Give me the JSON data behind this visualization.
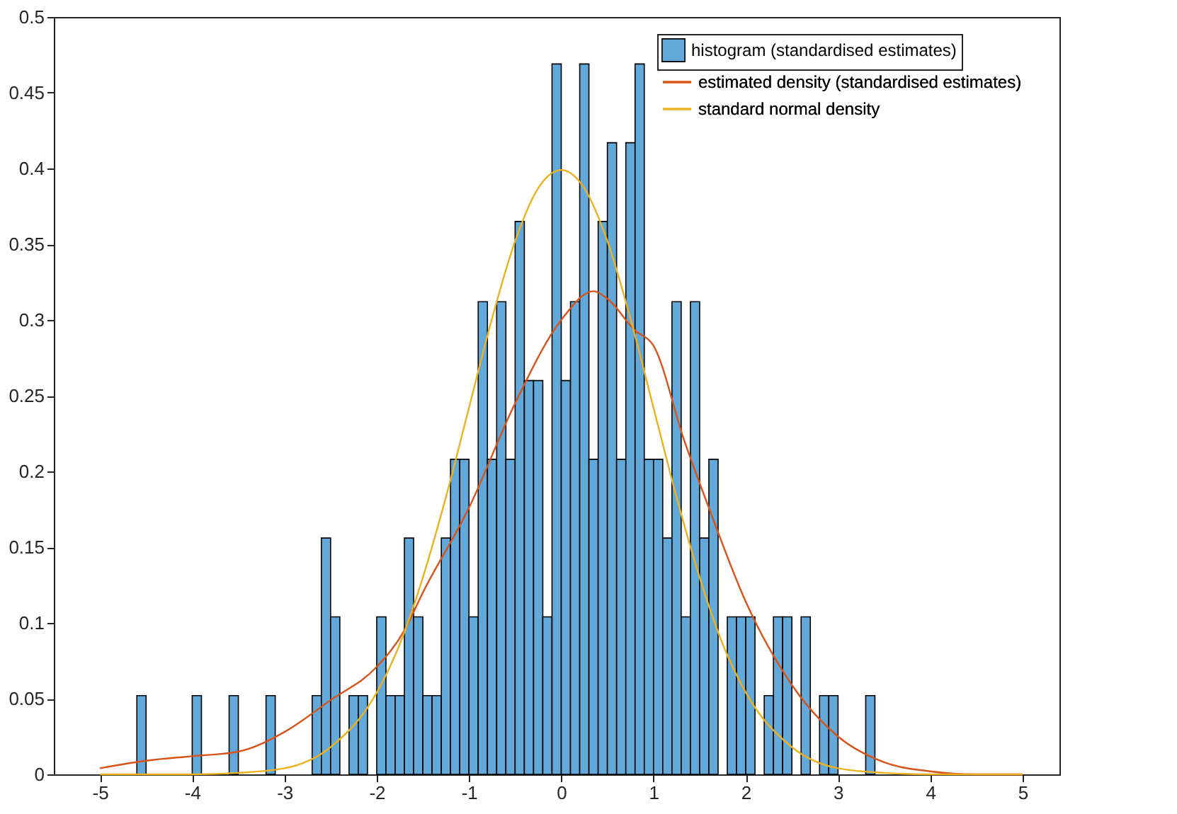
{
  "chart_data": {
    "type": "histogram",
    "bins": [
      -4.6,
      -4.5,
      -4.4,
      -4.3,
      -4.2,
      -4.1,
      -4.0,
      -3.9,
      -3.8,
      -3.7,
      -3.6,
      -3.5,
      -3.4,
      -3.3,
      -3.2,
      -3.1,
      -3.0,
      -2.9,
      -2.8,
      -2.7,
      -2.6,
      -2.5,
      -2.4,
      -2.3,
      -2.2,
      -2.1,
      -2.0,
      -1.9,
      -1.8,
      -1.7,
      -1.6,
      -1.5,
      -1.4,
      -1.3,
      -1.2,
      -1.1,
      -1.0,
      -0.9,
      -0.8,
      -0.7,
      -0.6,
      -0.5,
      -0.4,
      -0.3,
      -0.2,
      -0.1,
      0.0,
      0.1,
      0.2,
      0.3,
      0.4,
      0.5,
      0.6,
      0.7,
      0.8,
      0.9,
      1.0,
      1.1,
      1.2,
      1.3,
      1.4,
      1.5,
      1.6,
      1.7,
      1.8,
      1.9,
      2.0,
      2.1,
      2.2,
      2.3,
      2.4,
      2.5,
      2.6,
      2.7,
      2.8,
      2.9,
      3.0,
      3.1,
      3.2,
      3.3,
      3.4
    ],
    "series": [
      {
        "name": "histogram (standardised estimates)",
        "color": "#62a8d9",
        "values": [
          0.052,
          0,
          0,
          0,
          0,
          0,
          0.052,
          0,
          0,
          0,
          0.052,
          0,
          0,
          0,
          0.052,
          0,
          0,
          0,
          0,
          0.052,
          0.156,
          0.104,
          0,
          0.052,
          0.052,
          0,
          0.104,
          0.052,
          0.052,
          0.156,
          0.104,
          0.052,
          0.052,
          0.156,
          0.208,
          0.208,
          0.104,
          0.312,
          0.208,
          0.312,
          0.208,
          0.365,
          0.26,
          0.26,
          0.104,
          0.469,
          0.26,
          0.312,
          0.469,
          0.208,
          0.365,
          0.417,
          0.208,
          0.417,
          0.469,
          0.208,
          0.208,
          0.156,
          0.312,
          0.104,
          0.312,
          0.156,
          0.208,
          0,
          0.104,
          0.104,
          0.104,
          0,
          0.052,
          0.104,
          0.104,
          0,
          0.104,
          0,
          0.052,
          0.052,
          0,
          0,
          0,
          0.052
        ]
      },
      {
        "name": "estimated density (standardised estimates)",
        "type": "line",
        "color": "#d95319",
        "x": [
          -5,
          -4.5,
          -4,
          -3.5,
          -3,
          -2.5,
          -2,
          -1.7,
          -1.5,
          -1,
          -0.5,
          0,
          0.35,
          0.5,
          0.8,
          1,
          1.33,
          1.6,
          2,
          2.5,
          3,
          3.5,
          4,
          4.5,
          5
        ],
        "values": [
          0.004,
          0.009,
          0.012,
          0.015,
          0.028,
          0.049,
          0.071,
          0.095,
          0.12,
          0.176,
          0.245,
          0.3,
          0.319,
          0.314,
          0.293,
          0.283,
          0.221,
          0.176,
          0.114,
          0.059,
          0.025,
          0.008,
          0.002,
          0,
          0
        ]
      },
      {
        "name": "standard normal density",
        "type": "line",
        "color": "#edb120",
        "x": [
          -5,
          -4,
          -3.5,
          -3,
          -2.5,
          -2,
          -1.75,
          -1.5,
          -1.25,
          -1,
          -0.75,
          -0.5,
          -0.25,
          0,
          0.25,
          0.5,
          0.75,
          1,
          1.25,
          1.5,
          1.75,
          2,
          2.5,
          3,
          3.5,
          4,
          5
        ],
        "values": [
          0,
          0,
          0.001,
          0.004,
          0.018,
          0.054,
          0.086,
          0.13,
          0.183,
          0.242,
          0.301,
          0.352,
          0.387,
          0.399,
          0.387,
          0.352,
          0.301,
          0.242,
          0.183,
          0.13,
          0.086,
          0.054,
          0.018,
          0.004,
          0.001,
          0,
          0
        ]
      }
    ],
    "xlim": [
      -5.5,
      5.4
    ],
    "ylim": [
      0,
      0.5
    ],
    "xticks": [
      -5,
      -4,
      -3,
      -2,
      -1,
      0,
      1,
      2,
      3,
      4,
      5
    ],
    "yticks": [
      0,
      0.05,
      0.1,
      0.15,
      0.2,
      0.25,
      0.3,
      0.35,
      0.4,
      0.45,
      0.5
    ],
    "legend": "top right",
    "marker": "none",
    "line_style": "solid"
  }
}
